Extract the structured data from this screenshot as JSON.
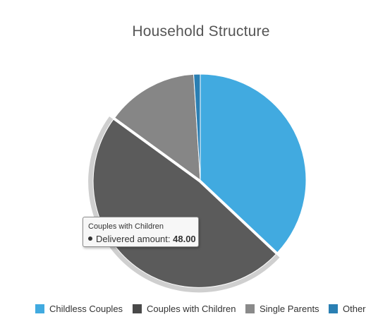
{
  "chart_data": {
    "type": "pie",
    "title": "Household Structure",
    "categories": [
      "Childless Couples",
      "Couples with Children",
      "Single Parents",
      "Other"
    ],
    "values": [
      37,
      48,
      14,
      1
    ],
    "colors": [
      "#41aae0",
      "#5b5b5b",
      "#868686",
      "#2a7fb3"
    ],
    "highlighted": "Couples with Children",
    "legend_position": "bottom"
  },
  "tooltip": {
    "category": "Couples with Children",
    "series_label": "Delivered amount:",
    "value": "48.00"
  },
  "legend": [
    {
      "label": "Childless Couples",
      "color": "#41aae0"
    },
    {
      "label": "Couples with Children",
      "color": "#494949"
    },
    {
      "label": "Single Parents",
      "color": "#8a8a8a"
    },
    {
      "label": "Other",
      "color": "#2a7fb3"
    }
  ]
}
